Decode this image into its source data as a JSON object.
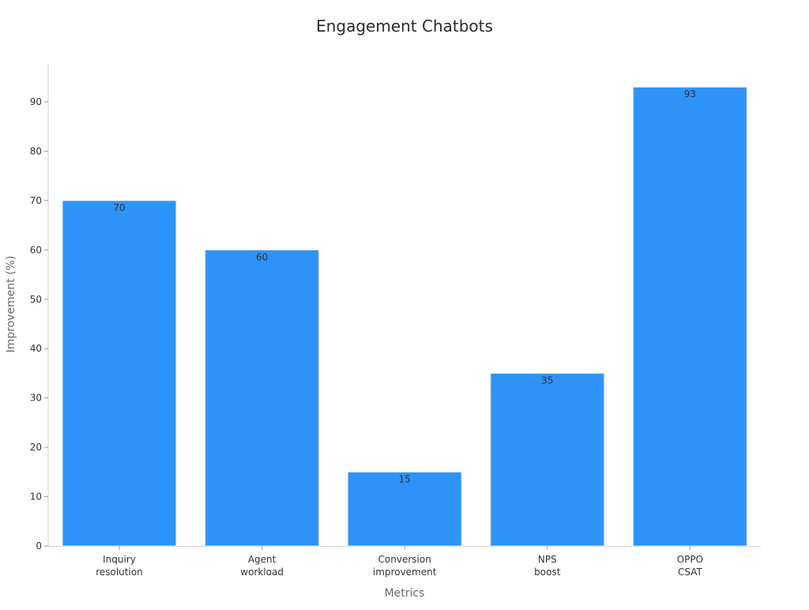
{
  "chart_data": {
    "type": "bar",
    "title": "Engagement Chatbots",
    "xlabel": "Metrics",
    "ylabel": "Improvement (%)",
    "categories": [
      [
        "Inquiry",
        "resolution"
      ],
      [
        "Agent",
        "workload"
      ],
      [
        "Conversion",
        "improvement"
      ],
      [
        "NPS",
        "boost"
      ],
      [
        "OPPO",
        "CSAT"
      ]
    ],
    "values": [
      70,
      60,
      15,
      35,
      93
    ],
    "data_labels": [
      "70",
      "60",
      "15",
      "35",
      "93"
    ],
    "ylim": [
      0,
      98
    ],
    "yticks": [
      0,
      10,
      20,
      30,
      40,
      50,
      60,
      70,
      80,
      90
    ],
    "grid": false,
    "legend": "none",
    "bar_color": "#2e93f7",
    "bar_edge_color": "#e8eef5"
  }
}
